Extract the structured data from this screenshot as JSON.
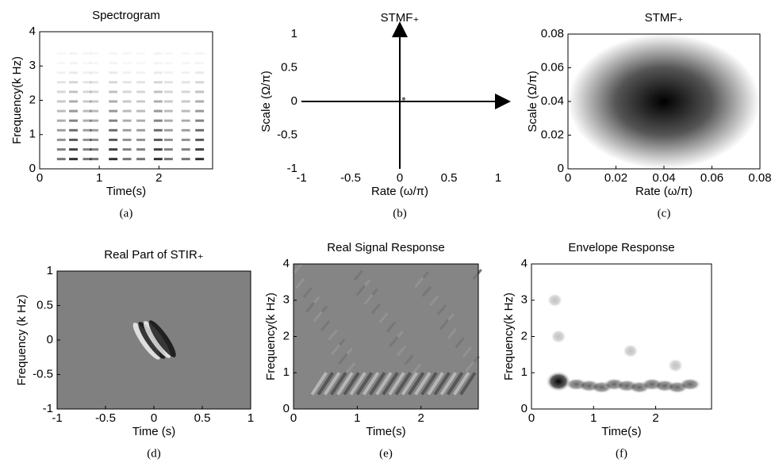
{
  "chart_data": [
    {
      "type": "image",
      "title": "Spectrogram",
      "xlabel": "Time(s)",
      "ylabel": "Frequency(k Hz)",
      "caption": "(a)",
      "xlim": [
        0,
        2.9
      ],
      "ylim": [
        0,
        4
      ],
      "xticks": [
        0,
        1,
        2
      ],
      "yticks": [
        0,
        1,
        2,
        3,
        4
      ]
    },
    {
      "type": "scatter",
      "title": "STMF₊",
      "xlabel": "Rate (ω/π)",
      "ylabel": "Scale (Ω/π)",
      "caption": "(b)",
      "x": [
        0.04
      ],
      "values": [
        0.04
      ],
      "xlim": [
        -1,
        1
      ],
      "ylim": [
        -1,
        1
      ],
      "xticks": [
        -1,
        -0.5,
        0,
        0.5,
        1
      ],
      "yticks": [
        -1,
        -0.5,
        0,
        0.5,
        1
      ]
    },
    {
      "type": "image",
      "title": "STMF₊",
      "xlabel": "Rate (ω/π)",
      "ylabel": "Scale (Ω/π)",
      "caption": "(c)",
      "xlim": [
        0,
        0.08
      ],
      "ylim": [
        0,
        0.08
      ],
      "xticks": [
        0,
        0.02,
        0.04,
        0.06,
        0.08
      ],
      "yticks": [
        0,
        0.02,
        0.04,
        0.06,
        0.08
      ]
    },
    {
      "type": "image",
      "title": "Real Part of STIR₊",
      "xlabel": "Time (s)",
      "ylabel": "Frequency (k Hz)",
      "caption": "(d)",
      "xlim": [
        -1,
        1
      ],
      "ylim": [
        -1,
        1
      ],
      "xticks": [
        -1,
        -0.5,
        0,
        0.5,
        1
      ],
      "yticks": [
        -1,
        -0.5,
        0,
        0.5,
        1
      ]
    },
    {
      "type": "image",
      "title": "Real Signal Response",
      "xlabel": "Time(s)",
      "ylabel": "Frequency(k Hz)",
      "caption": "(e)",
      "xlim": [
        0,
        2.9
      ],
      "ylim": [
        0,
        4
      ],
      "xticks": [
        0,
        1,
        2
      ],
      "yticks": [
        0,
        1,
        2,
        3,
        4
      ]
    },
    {
      "type": "image",
      "title": "Envelope Response",
      "xlabel": "Time(s)",
      "ylabel": "Frequency(k Hz)",
      "caption": "(f)",
      "xlim": [
        0,
        2.9
      ],
      "ylim": [
        0,
        4
      ],
      "xticks": [
        0,
        1,
        2
      ],
      "yticks": [
        0,
        1,
        2,
        3,
        4
      ]
    }
  ]
}
